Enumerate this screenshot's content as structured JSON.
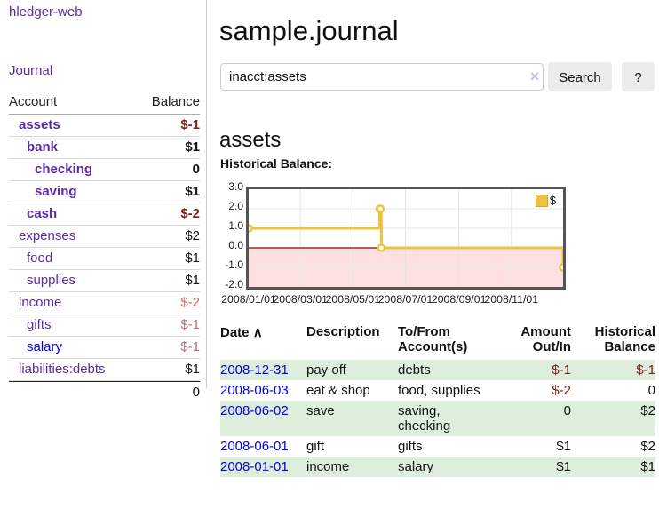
{
  "app": {
    "title": "hledger-web",
    "nav_journal": "Journal"
  },
  "colors": {
    "link_purple": "#5a2ca0",
    "link_blue": "#0000e0",
    "negative_strong": "#7f1d12",
    "negative_soft": "#bd6b71",
    "row_green": "#ddeedd",
    "series_yellow": "#edc240",
    "chart_border": "#545454",
    "zero_line": "#8b0000",
    "negative_region": "rgba(255,0,0,0.12)",
    "grid_line": "#e5e5e5"
  },
  "sidebar": {
    "col_account": "Account",
    "col_balance": "Balance",
    "accounts": [
      {
        "name": "assets",
        "balance": "$-1"
      },
      {
        "name": "bank",
        "balance": "$1"
      },
      {
        "name": "checking",
        "balance": "0"
      },
      {
        "name": "saving",
        "balance": "$1"
      },
      {
        "name": "cash",
        "balance": "$-2"
      },
      {
        "name": "expenses",
        "balance": "$2"
      },
      {
        "name": "food",
        "balance": "$1"
      },
      {
        "name": "supplies",
        "balance": "$1"
      },
      {
        "name": "income",
        "balance": "$-2"
      },
      {
        "name": "gifts",
        "balance": "$-1"
      },
      {
        "name": "salary",
        "balance": "$-1"
      },
      {
        "name": "liabilities:debts",
        "balance": "$1"
      }
    ],
    "total": "0"
  },
  "header": {
    "title": "sample.journal"
  },
  "search": {
    "value": "inacct:assets",
    "clear_icon": "×",
    "button_label": "Search",
    "help_label": "?"
  },
  "account_page": {
    "heading": "assets",
    "chart_label": "Historical Balance:"
  },
  "chart_data": {
    "type": "line",
    "step": true,
    "series": [
      {
        "name": "$",
        "color": "#edc240",
        "points": [
          [
            "2008-01-01",
            1
          ],
          [
            "2008-06-01",
            2
          ],
          [
            "2008-06-02",
            2
          ],
          [
            "2008-06-03",
            0
          ],
          [
            "2008-12-31",
            -1
          ]
        ]
      }
    ],
    "xlim": [
      "2008-01-01",
      "2008-12-31"
    ],
    "ylim": [
      -2,
      3
    ],
    "y_tick_labels": [
      "3.0",
      "2.0",
      "1.0",
      "0.0",
      "-1.0",
      "-2.0"
    ],
    "x_tick_labels": [
      "2008/01/01",
      "2008/03/01",
      "2008/05/01",
      "2008/07/01",
      "2008/09/01",
      "2008/11/01"
    ],
    "legend": {
      "label": "$",
      "position": "top-right"
    },
    "grid": true,
    "negative_region_shaded": true
  },
  "register": {
    "headers": {
      "date": "Date",
      "sort_icon": "∧",
      "description": "Description",
      "account": "To/From Account(s)",
      "amount": "Amount Out/In",
      "balance": "Historical Balance"
    },
    "rows": [
      {
        "date": "2008-12-31",
        "description": "pay off",
        "account": "debts",
        "amount": "$-1",
        "balance": "$-1"
      },
      {
        "date": "2008-06-03",
        "description": "eat & shop",
        "account": "food, supplies",
        "amount": "$-2",
        "balance": "0"
      },
      {
        "date": "2008-06-02",
        "description": "save",
        "account": "saving, checking",
        "amount": "0",
        "balance": "$2"
      },
      {
        "date": "2008-06-01",
        "description": "gift",
        "account": "gifts",
        "amount": "$1",
        "balance": "$2"
      },
      {
        "date": "2008-01-01",
        "description": "income",
        "account": "salary",
        "amount": "$1",
        "balance": "$1"
      }
    ]
  }
}
